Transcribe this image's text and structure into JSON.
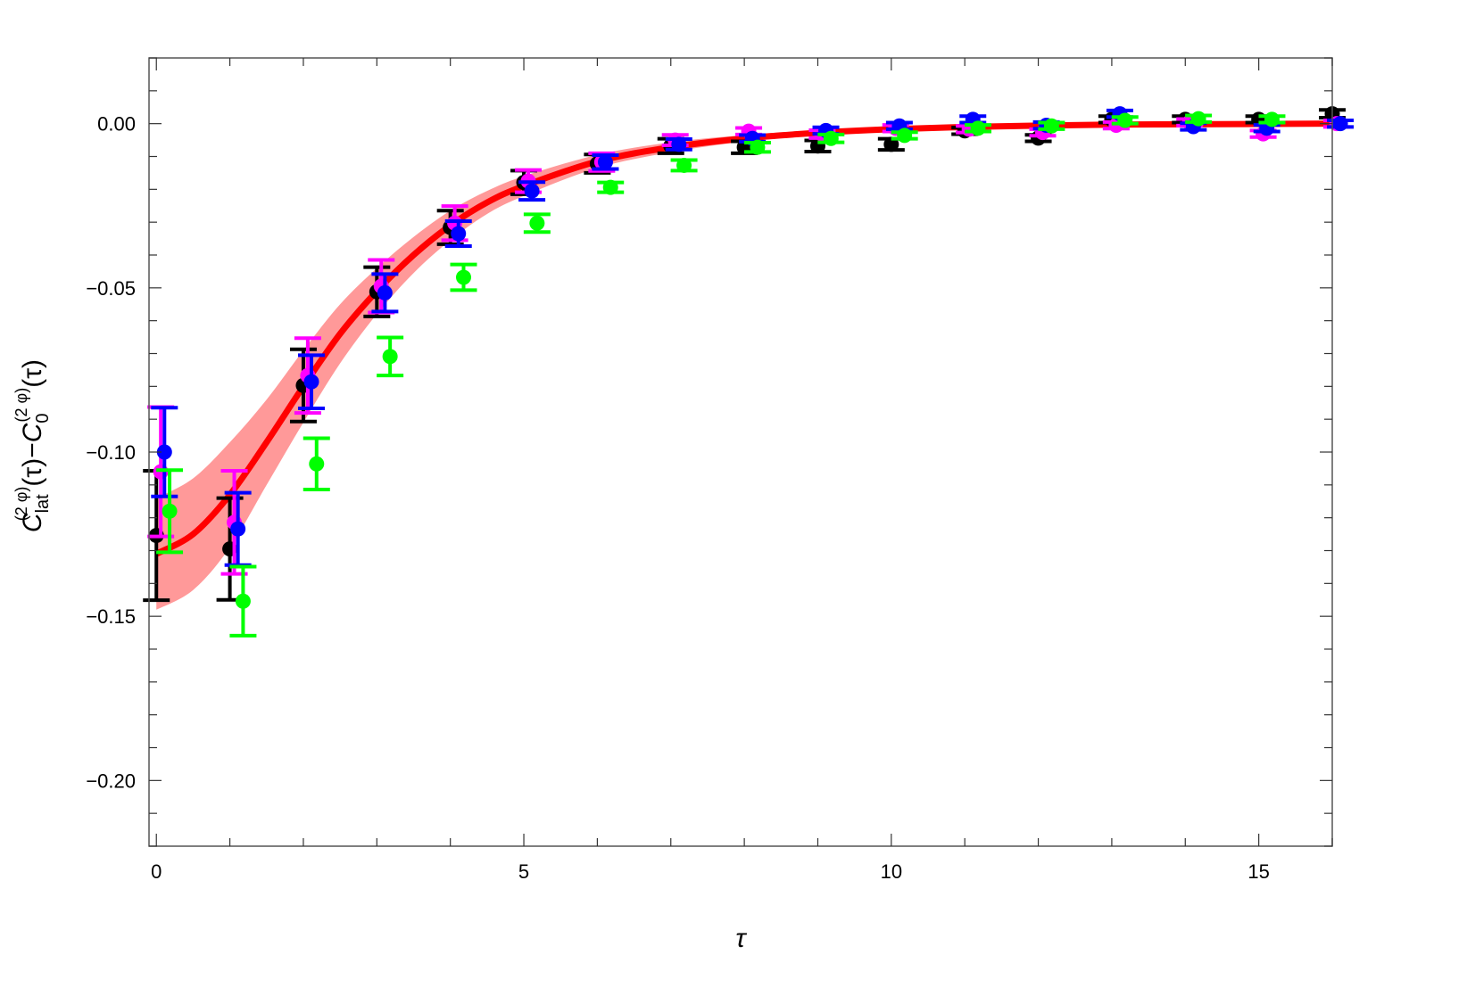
{
  "chart_data": {
    "type": "scatter",
    "title": "",
    "xlabel": "τ",
    "ylabel": {
      "C": "C",
      "sub1": "lat",
      "sup1": "(2 φ)",
      "mid": "(τ)−",
      "C2": "C",
      "sub2": "0",
      "sup2": "(2 φ)",
      "end": "(τ)"
    },
    "xlim": [
      -0.1,
      16.0
    ],
    "ylim": [
      -0.22,
      0.02
    ],
    "x_ticks": [
      0,
      5,
      10,
      15
    ],
    "x_tick_labels": [
      "0",
      "5",
      "10",
      "15"
    ],
    "y_ticks": [
      0.0,
      -0.05,
      -0.1,
      -0.15,
      -0.2
    ],
    "y_tick_labels": [
      "0.00",
      "−0.05",
      "−0.10",
      "−0.15",
      "−0.20"
    ],
    "grid": false,
    "legend": "none",
    "series": [
      {
        "color": "#000000",
        "x": [
          0,
          1,
          2,
          3,
          4,
          5,
          6,
          7,
          8,
          9,
          10,
          11,
          12,
          13,
          14,
          15,
          16
        ],
        "y": [
          -0.1254,
          -0.1295,
          -0.0797,
          -0.0512,
          -0.0316,
          -0.0179,
          -0.0122,
          -0.0068,
          -0.0072,
          -0.0068,
          -0.0063,
          -0.0022,
          -0.0044,
          0.0013,
          0.0013,
          0.0013,
          0.003
        ],
        "err": [
          0.0197,
          0.0155,
          0.011,
          0.0075,
          0.0051,
          0.0036,
          0.0028,
          0.0022,
          0.0018,
          0.0017,
          0.0017,
          0.001,
          0.001,
          0.001,
          0.001,
          0.001,
          0.0012
        ]
      },
      {
        "color": "#ff00ff",
        "x": [
          0.06,
          1.06,
          2.06,
          3.06,
          4.06,
          5.06,
          6.06,
          7.06,
          8.06,
          9.06,
          10.06,
          11.06,
          12.06,
          13.06,
          14.06,
          15.06,
          16.06
        ],
        "y": [
          -0.106,
          -0.1214,
          -0.0767,
          -0.0495,
          -0.0303,
          -0.0175,
          -0.0117,
          -0.005,
          -0.0023,
          -0.0032,
          -0.0014,
          -0.0017,
          -0.0027,
          -0.0005,
          0.0004,
          -0.0031,
          0.0
        ],
        "err": [
          0.0197,
          0.0157,
          0.0114,
          0.008,
          0.0052,
          0.0034,
          0.0027,
          0.0016,
          0.001,
          0.0012,
          0.001,
          0.001,
          0.001,
          0.001,
          0.001,
          0.001,
          0.001
        ]
      },
      {
        "color": "#0000ff",
        "x": [
          0.11,
          1.11,
          2.11,
          3.11,
          4.11,
          5.11,
          6.11,
          7.11,
          8.11,
          9.11,
          10.11,
          11.11,
          12.11,
          13.11,
          14.11,
          15.11,
          16.11
        ],
        "y": [
          -0.1,
          -0.1234,
          -0.0786,
          -0.0515,
          -0.0335,
          -0.0205,
          -0.0117,
          -0.0063,
          -0.0045,
          -0.0021,
          -0.0007,
          0.0013,
          -0.0005,
          0.003,
          -0.0009,
          -0.0014,
          0.0
        ],
        "err": [
          0.0135,
          0.011,
          0.0081,
          0.0057,
          0.0038,
          0.0027,
          0.0021,
          0.0016,
          0.001,
          0.001,
          0.001,
          0.001,
          0.001,
          0.001,
          0.001,
          0.001,
          0.001
        ]
      },
      {
        "color": "#00ff00",
        "x": [
          0.18,
          1.18,
          2.18,
          3.18,
          4.18,
          5.18,
          6.18,
          7.18,
          8.18,
          9.18,
          10.18,
          11.18,
          12.18,
          13.18,
          14.18,
          15.18
        ],
        "y": [
          -0.118,
          -0.1454,
          -0.1036,
          -0.0709,
          -0.0468,
          -0.0303,
          -0.0194,
          -0.0127,
          -0.0072,
          -0.0045,
          -0.0036,
          -0.0014,
          -0.0007,
          0.001,
          0.0015,
          0.0013
        ],
        "err": [
          0.0125,
          0.0105,
          0.0078,
          0.0058,
          0.0039,
          0.0027,
          0.0015,
          0.0016,
          0.0014,
          0.0012,
          0.001,
          0.001,
          0.001,
          0.001,
          0.001,
          0.001
        ]
      }
    ],
    "fit": {
      "color": "#ff0000",
      "band_color": "#ff9999",
      "x": [
        0,
        0.5,
        1,
        1.5,
        2,
        2.5,
        3,
        3.5,
        4,
        4.5,
        5,
        6,
        7,
        8,
        9,
        10,
        11,
        12,
        13,
        14,
        15,
        16
      ],
      "y": [
        -0.131,
        -0.125,
        -0.113,
        -0.097,
        -0.08,
        -0.064,
        -0.051,
        -0.04,
        -0.031,
        -0.024,
        -0.019,
        -0.0115,
        -0.0072,
        -0.0045,
        -0.0028,
        -0.0017,
        -0.001,
        -0.0006,
        -0.0003,
        -0.0002,
        -0.0001,
        0
      ],
      "band": [
        0.017,
        0.017,
        0.016,
        0.013,
        0.011,
        0.009,
        0.007,
        0.0055,
        0.0045,
        0.0035,
        0.003,
        0.002,
        0.0015,
        0.001,
        0.0008,
        0.0005,
        0.0004,
        0.0003,
        0.0002,
        0.0001,
        0.0001,
        0
      ]
    }
  }
}
